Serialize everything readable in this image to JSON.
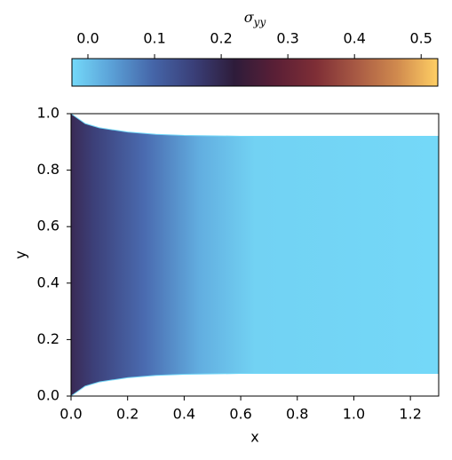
{
  "chart_data": {
    "type": "field",
    "xlabel": "x",
    "ylabel": "y",
    "xlim": [
      0,
      1.3
    ],
    "xticks": [
      {
        "value": 0,
        "label": "0.0"
      },
      0.2,
      0.4,
      0.6,
      0.8,
      {
        "value": 1,
        "label": "1.0"
      },
      1.2
    ],
    "ylim": [
      0,
      1
    ],
    "yticks": [
      {
        "value": 0,
        "label": "0.0"
      },
      0.2,
      0.4,
      0.6,
      0.8,
      {
        "value": 1,
        "label": "1.0"
      }
    ],
    "colorbar_label": {
      "symbol": "σ",
      "subscript": "yy"
    },
    "clim": [
      -0.024,
      0.525
    ],
    "cticks": [
      {
        "value": 0,
        "label": "0.0"
      },
      0.1,
      0.2,
      0.3,
      0.4,
      0.5
    ],
    "colormap": [
      "#74d9f9",
      "#5a9fd6",
      "#4565a8",
      "#3a3f78",
      "#2e1c3a",
      "#5a1f36",
      "#7e2e36",
      "#a85a44",
      "#d08a4e",
      "#ffcf64"
    ],
    "upper_boundary": {
      "x": [
        0,
        0.05,
        0.1,
        0.2,
        0.3,
        0.4,
        0.6,
        0.8,
        1.3
      ],
      "y": [
        1,
        0.965,
        0.95,
        0.935,
        0.927,
        0.923,
        0.92,
        0.92,
        0.92
      ]
    },
    "lower_boundary": {
      "x": [
        0,
        0.05,
        0.1,
        0.2,
        0.3,
        0.4,
        0.6,
        0.8,
        1.3
      ],
      "y": [
        0,
        0.035,
        0.05,
        0.065,
        0.073,
        0.077,
        0.08,
        0.08,
        0.08
      ]
    }
  }
}
